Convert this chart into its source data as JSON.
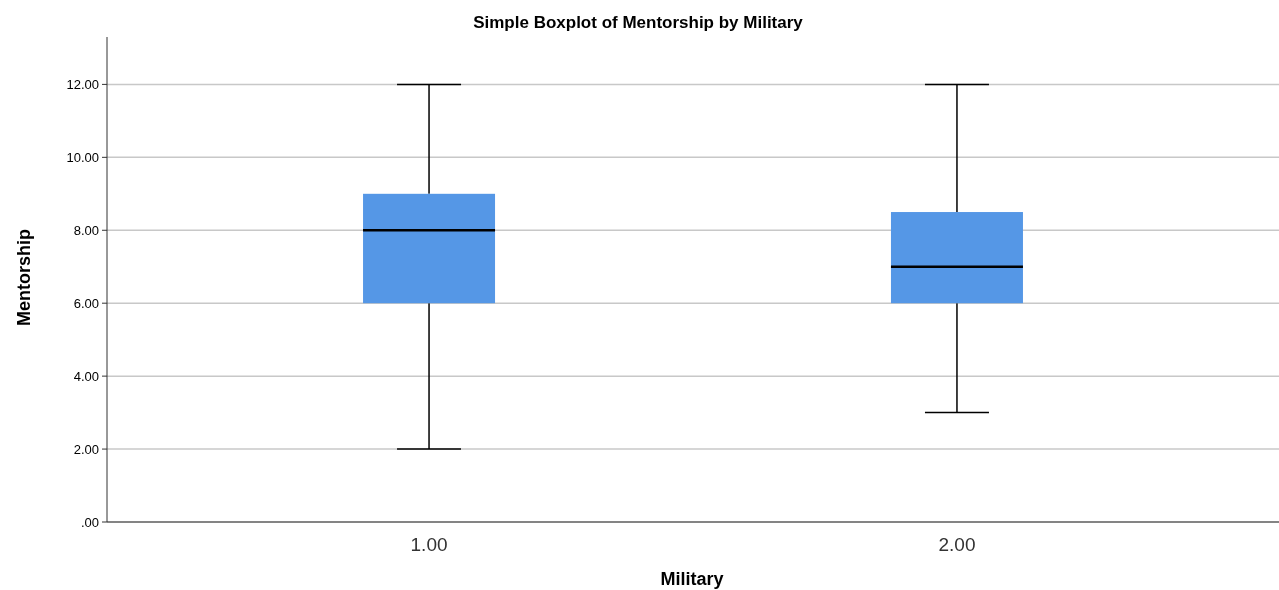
{
  "chart_data": {
    "type": "box",
    "title": "Simple Boxplot of Mentorship by Military",
    "xlabel": "Military",
    "ylabel": "Mentorship",
    "categories": [
      "1.00",
      "2.00"
    ],
    "series": [
      {
        "color": "#5597e6",
        "boxes": [
          {
            "low": 2,
            "q1": 6,
            "median": 8,
            "q3": 9,
            "high": 12
          },
          {
            "low": 3,
            "q1": 6,
            "median": 7,
            "q3": 8.5,
            "high": 12
          }
        ]
      }
    ],
    "ylim": [
      0,
      13.3
    ],
    "yticks": [
      {
        "value": 0,
        "label": ".00"
      },
      {
        "value": 2,
        "label": "2.00"
      },
      {
        "value": 4,
        "label": "4.00"
      },
      {
        "value": 6,
        "label": "6.00"
      },
      {
        "value": 8,
        "label": "8.00"
      },
      {
        "value": 10,
        "label": "10.00"
      },
      {
        "value": 12,
        "label": "12.00"
      }
    ],
    "grid": "y"
  }
}
